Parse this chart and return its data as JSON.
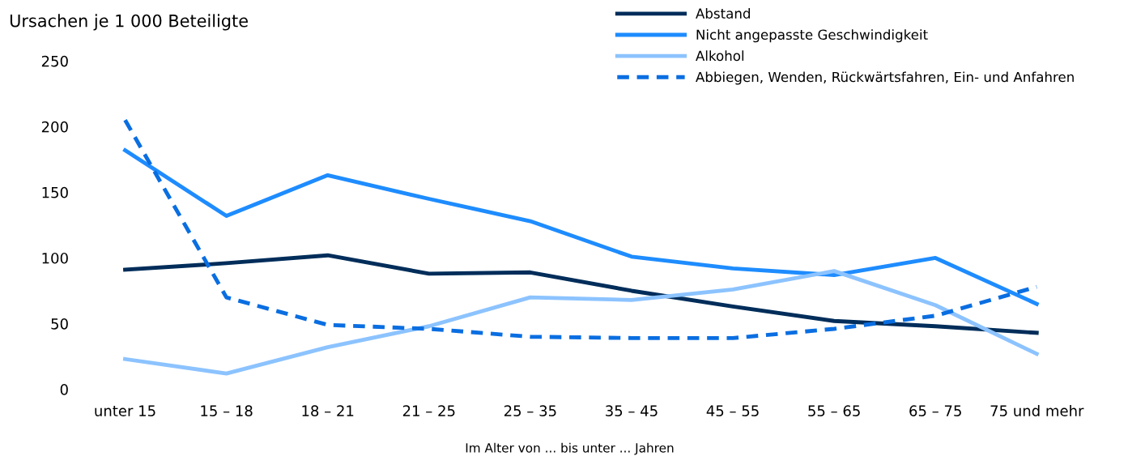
{
  "chart_data": {
    "type": "line",
    "title": "Ursachen je 1 000 Beteiligte",
    "xlabel": "Im Alter von ... bis unter ... Jahren",
    "categories": [
      "unter 15",
      "15 – 18",
      "18 – 21",
      "21 – 25",
      "25 – 35",
      "35 – 45",
      "45 – 55",
      "55 – 65",
      "65 – 75",
      "75 und mehr"
    ],
    "series": [
      {
        "name": "Abstand",
        "color": "#002d5a",
        "values": [
          91,
          96,
          102,
          88,
          89,
          75,
          63,
          52,
          48,
          43
        ]
      },
      {
        "name": "Nicht angepasste Geschwindigkeit",
        "color": "#1e8cff",
        "values": [
          182,
          132,
          163,
          145,
          128,
          101,
          92,
          87,
          100,
          65
        ]
      },
      {
        "name": "Alkohol",
        "color": "#8cc3ff",
        "values": [
          23,
          12,
          32,
          48,
          70,
          68,
          76,
          90,
          64,
          27
        ]
      },
      {
        "name": "Abbiegen, Wenden, Rückwärtsfahren, Ein- und Anfahren",
        "color": "#0a6ee1",
        "line_style": "dashed",
        "values": [
          205,
          70,
          49,
          46,
          40,
          39,
          39,
          46,
          56,
          78
        ]
      }
    ],
    "ylim": [
      0,
      250
    ],
    "yticks": [
      0,
      50,
      100,
      150,
      200,
      250
    ],
    "grid": false,
    "legend": "top right",
    "marker": "none",
    "line_style": "solid"
  }
}
